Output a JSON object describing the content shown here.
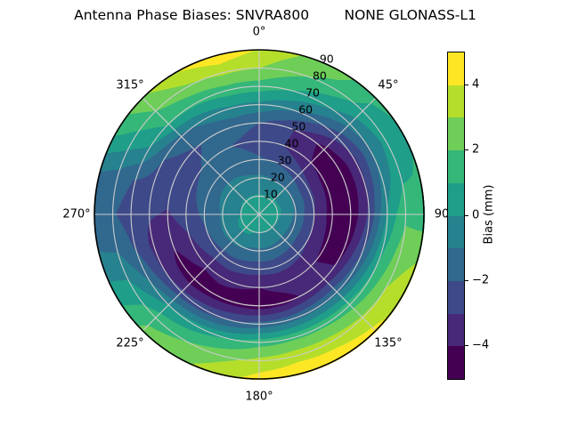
{
  "chart_data": {
    "type": "heatmap",
    "subtype": "polar_filled_contour",
    "title": "Antenna Phase Biases: SNVRA800        NONE GLONASS-L1",
    "colorbar": {
      "label": "Bias (mm)",
      "range": [
        -5,
        5
      ],
      "ticks": [
        {
          "value": 4,
          "label": "4"
        },
        {
          "value": 2,
          "label": "2"
        },
        {
          "value": 0,
          "label": "0"
        },
        {
          "value": -2,
          "label": "−2"
        },
        {
          "value": -4,
          "label": "−4"
        }
      ]
    },
    "levels_mm": [
      -5,
      -4,
      -3,
      -2,
      -1,
      0,
      1,
      2,
      3,
      4,
      5
    ],
    "band_colors": [
      "#440154",
      "#482878",
      "#3e4989",
      "#31688e",
      "#26828e",
      "#1f9e89",
      "#35b779",
      "#6ece58",
      "#b5de2b",
      "#fde725"
    ],
    "grid": {
      "on": true,
      "color": "#cccccc",
      "angular_step_deg": 45,
      "radial_step": 10
    },
    "angular_ticks": [
      {
        "angle_deg": 0,
        "label": "0°"
      },
      {
        "angle_deg": 45,
        "label": "45°"
      },
      {
        "angle_deg": 90,
        "label": "90"
      },
      {
        "angle_deg": 135,
        "label": "135°"
      },
      {
        "angle_deg": 180,
        "label": "180°"
      },
      {
        "angle_deg": 225,
        "label": "225°"
      },
      {
        "angle_deg": 270,
        "label": "270°"
      },
      {
        "angle_deg": 315,
        "label": "315°"
      }
    ],
    "radial_ticks": [
      {
        "r": 10,
        "label": "10"
      },
      {
        "r": 20,
        "label": "20"
      },
      {
        "r": 30,
        "label": "30"
      },
      {
        "r": 40,
        "label": "40"
      },
      {
        "r": 50,
        "label": "50"
      },
      {
        "r": 60,
        "label": "60"
      },
      {
        "r": 70,
        "label": "70"
      },
      {
        "r": 80,
        "label": "80"
      },
      {
        "r": 90,
        "label": "90"
      }
    ],
    "radial_label_angle_deg": 22.5,
    "azimuth_deg": [
      0,
      15,
      30,
      45,
      60,
      75,
      90,
      105,
      120,
      135,
      150,
      165,
      180,
      195,
      210,
      225,
      240,
      255,
      270,
      285,
      300,
      315,
      330,
      345,
      360
    ],
    "radius": [
      0,
      10,
      20,
      30,
      40,
      50,
      60,
      70,
      80,
      90
    ],
    "values_mm": [
      [
        0.5,
        0.1,
        -0.8,
        -1.9,
        -2.4,
        -2.0,
        -0.3,
        1.5,
        3.0,
        3.9
      ],
      [
        0.5,
        0.1,
        -0.9,
        -2.0,
        -2.8,
        -2.6,
        -0.8,
        1.0,
        2.2,
        3.0
      ],
      [
        0.5,
        0.2,
        -1.0,
        -2.2,
        -3.4,
        -3.4,
        -1.6,
        0.3,
        1.6,
        2.4
      ],
      [
        0.5,
        0.2,
        -1.0,
        -2.5,
        -4.0,
        -4.4,
        -2.6,
        -0.6,
        0.7,
        1.2
      ],
      [
        0.5,
        0.2,
        -1.1,
        -2.8,
        -4.3,
        -4.8,
        -3.2,
        -1.1,
        0.4,
        0.9
      ],
      [
        0.5,
        0.3,
        -1.1,
        -2.8,
        -4.4,
        -4.9,
        -3.1,
        -0.6,
        0.8,
        1.1
      ],
      [
        0.5,
        0.2,
        -1.2,
        -3.0,
        -4.5,
        -4.8,
        -2.8,
        0.2,
        1.8,
        1.4
      ],
      [
        0.5,
        0.1,
        -1.3,
        -3.0,
        -4.4,
        -4.5,
        -2.2,
        0.8,
        2.5,
        2.9
      ],
      [
        0.5,
        0.0,
        -1.4,
        -3.0,
        -4.2,
        -4.1,
        -1.6,
        1.2,
        3.0,
        3.7
      ],
      [
        0.5,
        0.0,
        -1.4,
        -2.8,
        -3.9,
        -3.7,
        -1.2,
        1.6,
        3.2,
        4.3
      ],
      [
        0.5,
        0.0,
        -1.3,
        -2.7,
        -3.7,
        -3.9,
        -1.2,
        1.8,
        3.5,
        4.7
      ],
      [
        0.5,
        0.0,
        -1.2,
        -2.6,
        -3.8,
        -4.3,
        -1.4,
        1.8,
        3.6,
        4.8
      ],
      [
        0.5,
        0.0,
        -1.2,
        -2.6,
        -4.0,
        -4.5,
        -1.6,
        1.6,
        3.3,
        4.4
      ],
      [
        0.5,
        0.0,
        -1.2,
        -2.5,
        -3.9,
        -4.4,
        -2.0,
        1.0,
        2.7,
        3.6
      ],
      [
        0.5,
        0.3,
        -0.9,
        -2.4,
        -3.7,
        -4.5,
        -2.4,
        0.5,
        2.0,
        2.7
      ],
      [
        0.5,
        0.3,
        -0.8,
        -2.4,
        -3.8,
        -4.7,
        -2.7,
        0.0,
        1.6,
        2.3
      ],
      [
        0.5,
        0.3,
        -0.7,
        -2.2,
        -3.4,
        -4.3,
        -3.1,
        -1.1,
        0.3,
        0.6
      ],
      [
        0.5,
        0.2,
        -0.8,
        -2.0,
        -3.0,
        -3.7,
        -3.3,
        -2.1,
        -1.0,
        -0.9
      ],
      [
        0.5,
        0.0,
        -0.9,
        -1.8,
        -2.5,
        -3.1,
        -2.9,
        -2.5,
        -1.9,
        -1.6
      ],
      [
        0.5,
        0.0,
        -0.8,
        -1.6,
        -2.3,
        -2.7,
        -2.5,
        -2.1,
        -1.4,
        -1.0
      ],
      [
        0.5,
        0.1,
        -0.7,
        -1.5,
        -2.1,
        -2.4,
        -2.0,
        -0.2,
        0.5,
        1.2
      ],
      [
        0.5,
        0.1,
        -0.7,
        -1.4,
        -1.9,
        -2.1,
        -1.3,
        1.1,
        2.0,
        2.8
      ],
      [
        0.5,
        0.1,
        -0.7,
        -1.5,
        -1.9,
        -1.8,
        -0.7,
        1.2,
        2.8,
        4.0
      ],
      [
        0.5,
        0.1,
        -0.8,
        -1.7,
        -2.1,
        -1.7,
        -0.2,
        1.5,
        3.2,
        4.8
      ],
      [
        0.5,
        0.1,
        -0.8,
        -1.9,
        -2.4,
        -2.0,
        -0.3,
        1.5,
        3.0,
        3.9
      ]
    ]
  }
}
